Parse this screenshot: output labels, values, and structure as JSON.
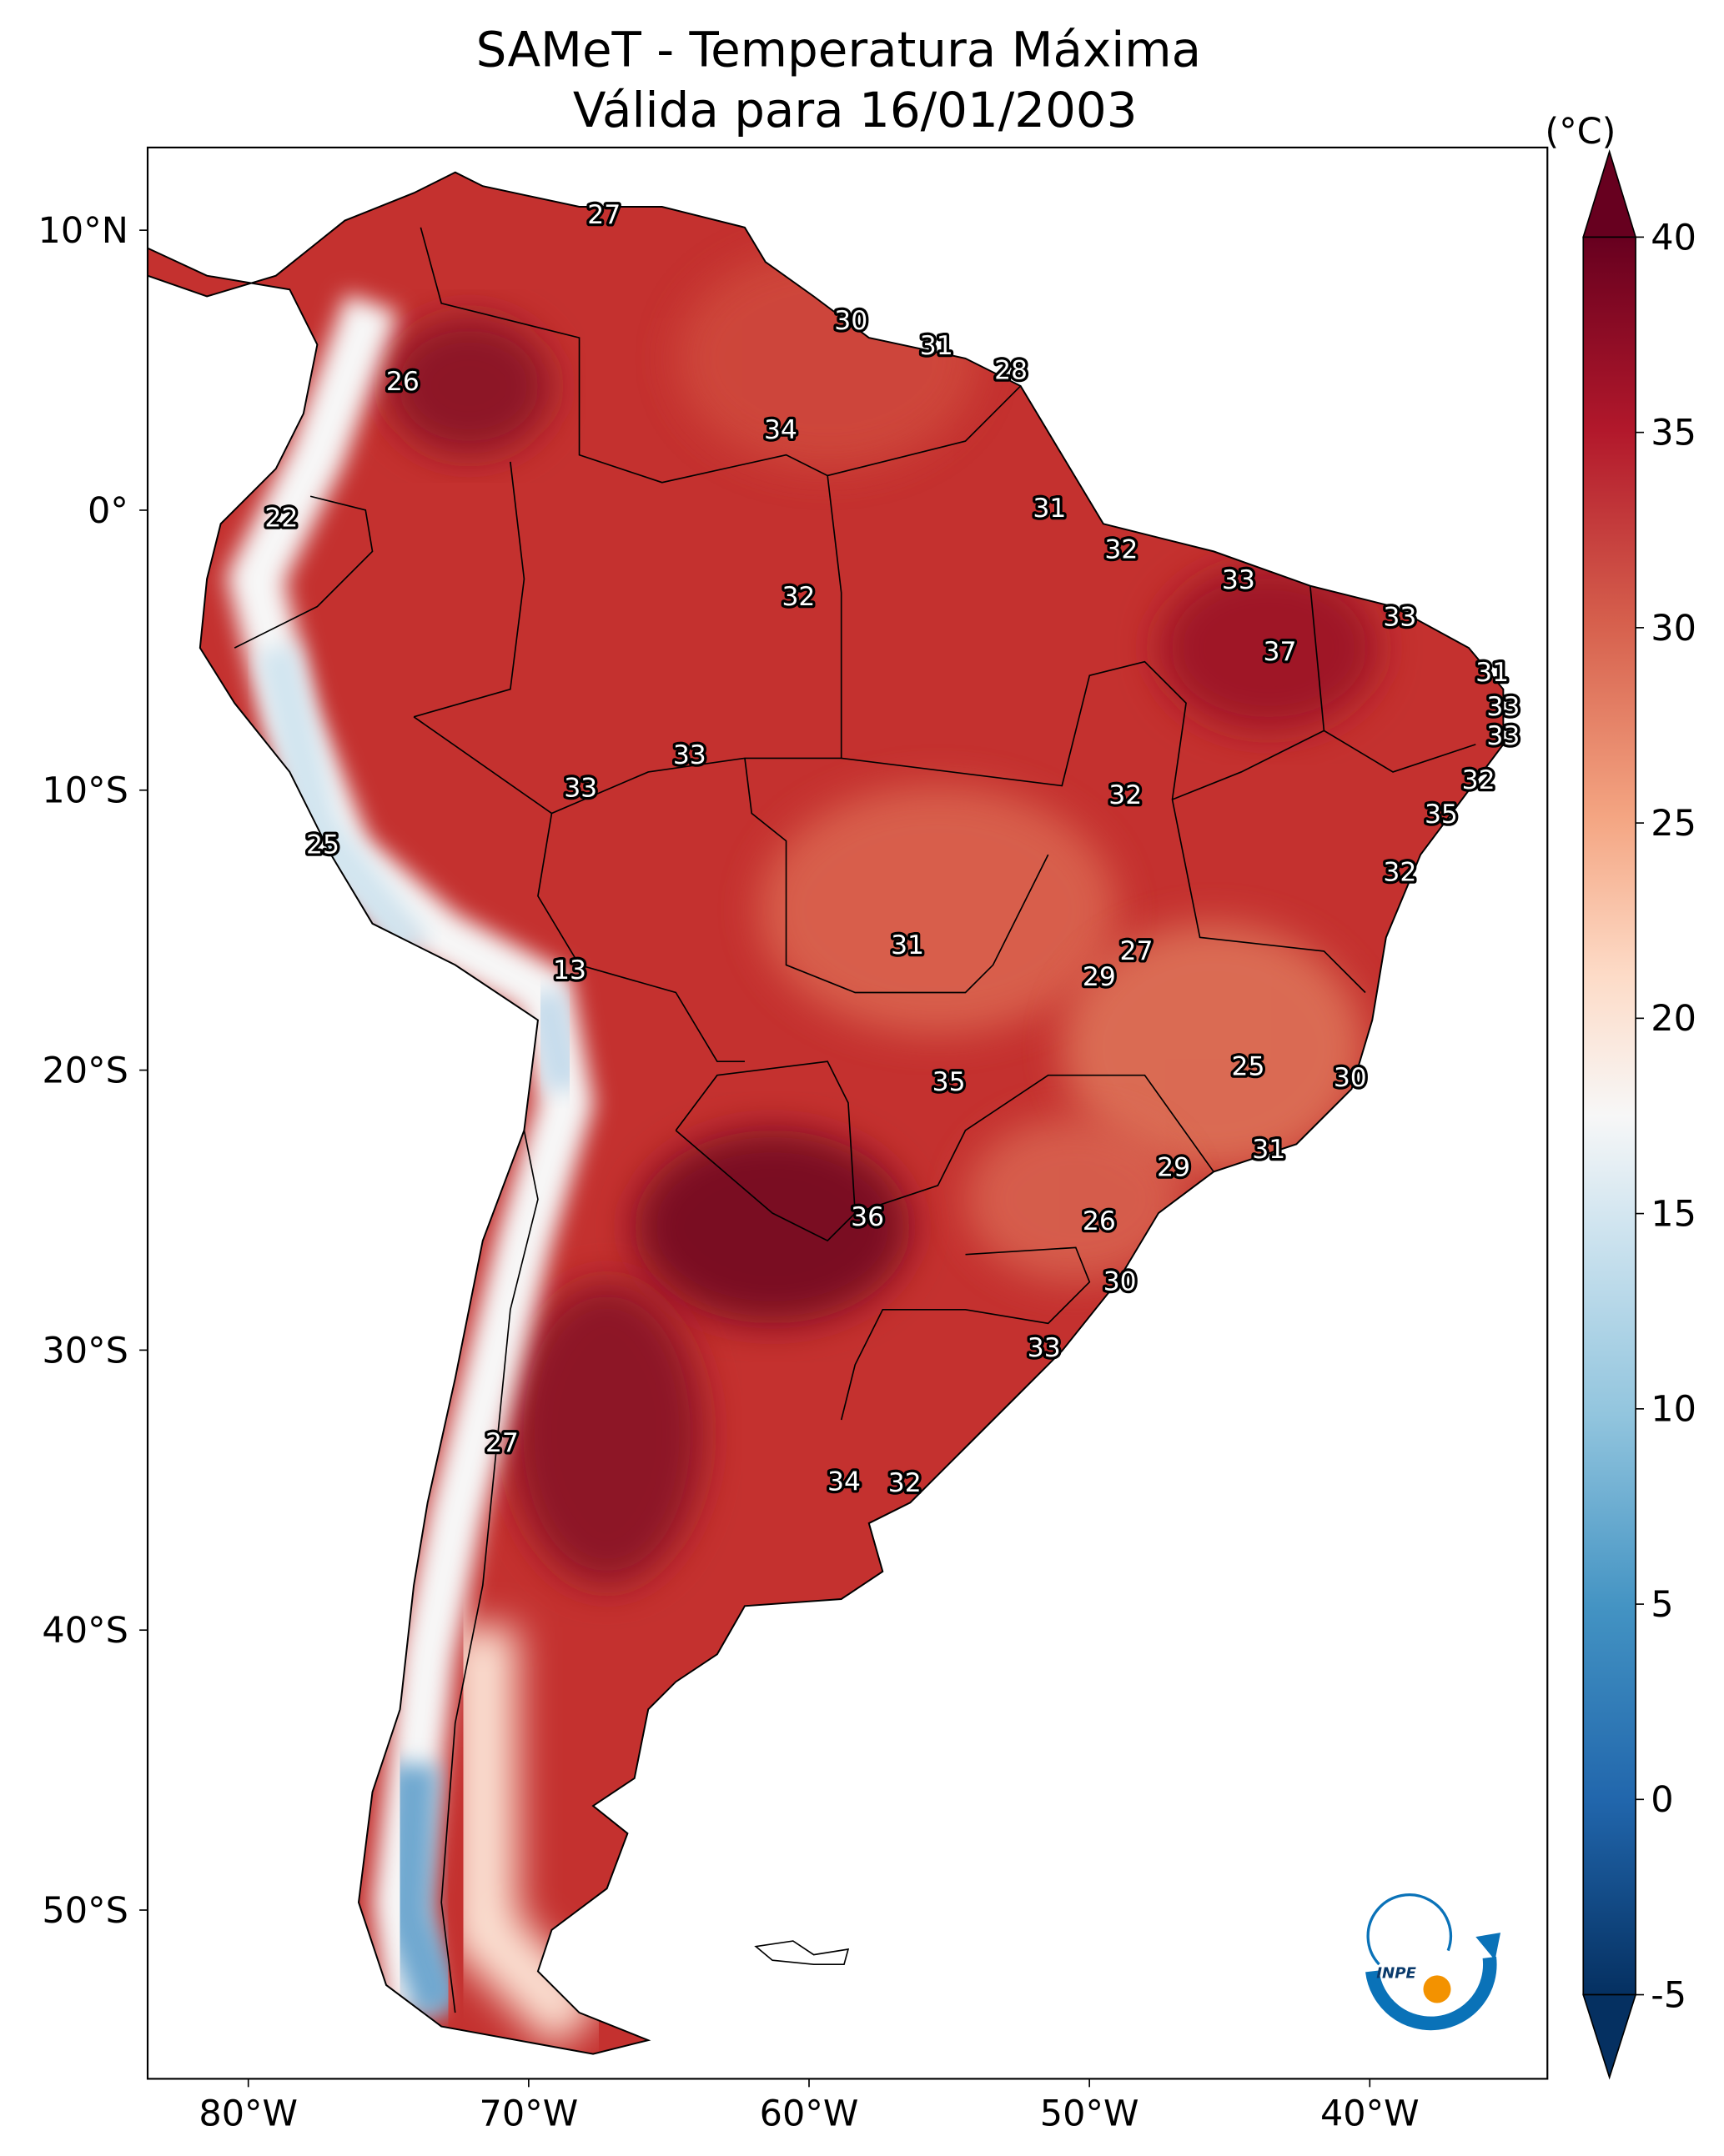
{
  "title": {
    "line1": "SAMeT - Temperatura Máxima",
    "line2": "Válida para 16/01/2003"
  },
  "map": {
    "lon_ticks": [
      "80°W",
      "70°W",
      "60°W",
      "50°W",
      "40°W"
    ],
    "lat_ticks": [
      "10°N",
      "0°",
      "10°S",
      "20°S",
      "30°S",
      "40°S",
      "50°S"
    ],
    "city_labels": [
      "27",
      "30",
      "31",
      "28",
      "26",
      "34",
      "22",
      "31",
      "32",
      "32",
      "33",
      "33",
      "37",
      "31",
      "33",
      "33",
      "32",
      "33",
      "33",
      "32",
      "35",
      "25",
      "32",
      "13",
      "31",
      "27",
      "29",
      "35",
      "25",
      "30",
      "36",
      "31",
      "29",
      "26",
      "30",
      "33",
      "27",
      "34",
      "32"
    ]
  },
  "colorbar": {
    "unit_label": "(°C)",
    "ticks": [
      "40",
      "35",
      "30",
      "25",
      "20",
      "15",
      "10",
      "5",
      "0",
      "-5"
    ],
    "range": [
      -5,
      40
    ],
    "colors": [
      "#053061",
      "#2166ac",
      "#4393c3",
      "#92c5de",
      "#d1e5f0",
      "#f7f7f7",
      "#fddbc7",
      "#f4a582",
      "#d6604d",
      "#b2182b",
      "#67001f"
    ]
  },
  "logo": {
    "text": "INPE"
  }
}
